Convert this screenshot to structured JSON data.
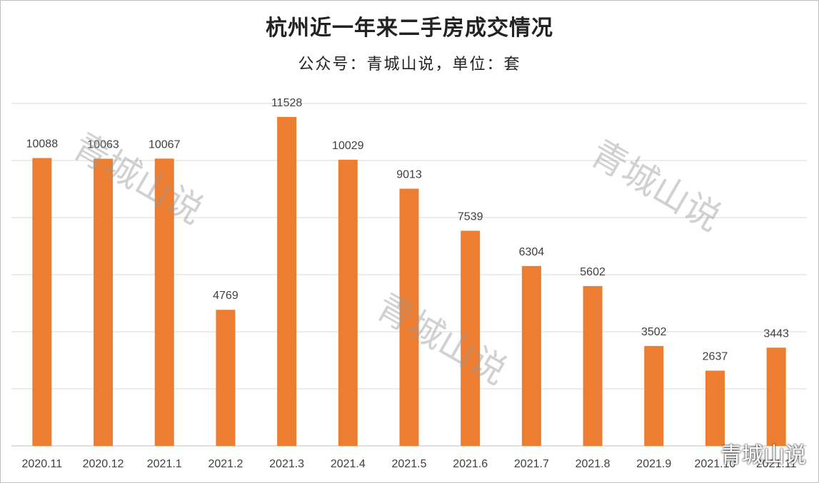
{
  "title": "杭州近一年来二手房成交情况",
  "subtitle": "公众号：青城山说，单位：套",
  "watermark": "青城山说",
  "corner_watermark": "青城山说",
  "colors": {
    "bar": "#ED7D31",
    "grid": "#D9D9D9",
    "text": "#404040"
  },
  "chart_data": {
    "type": "bar",
    "title": "杭州近一年来二手房成交情况",
    "subtitle": "公众号：青城山说，单位：套",
    "xlabel": "",
    "ylabel": "",
    "categories": [
      "2020.11",
      "2020.12",
      "2021.1",
      "2021.2",
      "2021.3",
      "2021.4",
      "2021.5",
      "2021.6",
      "2021.7",
      "2021.8",
      "2021.9",
      "2021.10",
      "2021.11"
    ],
    "values": [
      10088,
      10063,
      10067,
      4769,
      11528,
      10029,
      9013,
      7539,
      6304,
      5602,
      3502,
      2637,
      3443
    ],
    "ylim": [
      0,
      12000
    ],
    "y_gridlines": [
      0,
      2000,
      4000,
      6000,
      8000,
      10000,
      12000
    ],
    "y_tick_labels_shown": false,
    "data_labels": true,
    "grid": true,
    "legend": "none"
  }
}
